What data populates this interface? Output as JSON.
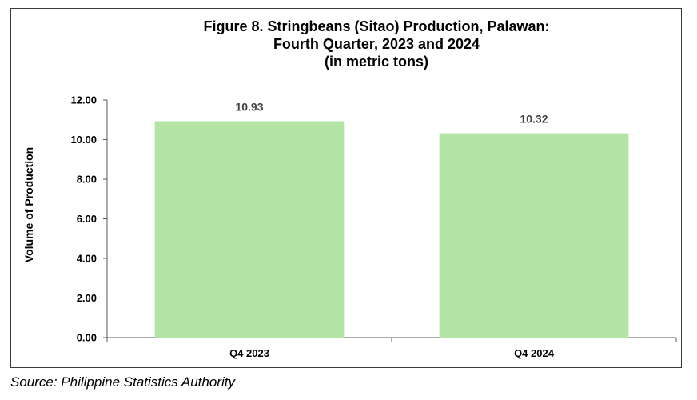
{
  "chart_data": {
    "type": "bar",
    "title_lines": [
      "Figure 8. Stringbeans (Sitao) Production, Palawan:",
      "Fourth Quarter, 2023 and 2024",
      "(in metric tons)"
    ],
    "xlabel": "",
    "ylabel": "Volume of Production",
    "categories": [
      "Q4 2023",
      "Q4 2024"
    ],
    "values": [
      10.93,
      10.32
    ],
    "value_labels": [
      "10.93",
      "10.32"
    ],
    "ylim": [
      0,
      12
    ],
    "yticks": [
      0,
      2,
      4,
      6,
      8,
      10,
      12
    ],
    "ytick_labels": [
      "0.00",
      "2.00",
      "4.00",
      "6.00",
      "8.00",
      "10.00",
      "12.00"
    ],
    "grid": false,
    "legend": "none",
    "bar_color": "#b3e4a5"
  },
  "source": "Source: Philippine Statistics Authority"
}
